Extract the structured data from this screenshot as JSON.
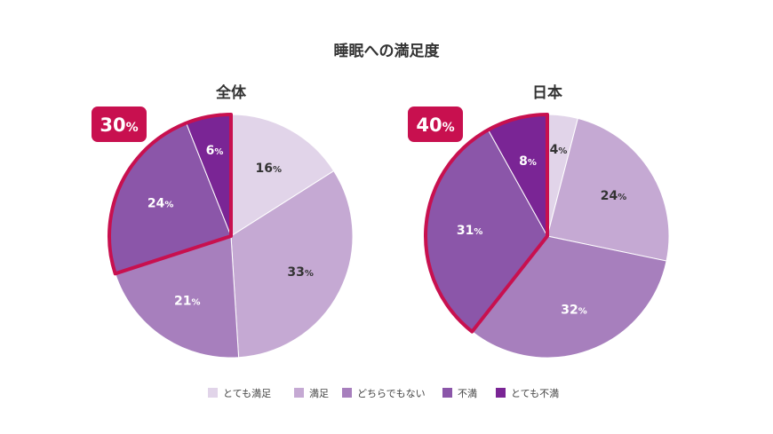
{
  "chart_data": {
    "type": "pie",
    "title": "睡眠への満足度",
    "legend": [
      "とても満足",
      "満足",
      "どちらでもない",
      "不満",
      "とても不満"
    ],
    "legend_position": "bottom",
    "colors": [
      "#e1d4e9",
      "#c5a9d3",
      "#a77fbd",
      "#8b56a9",
      "#7a2595"
    ],
    "highlight_color": "#c8104f",
    "charts": [
      {
        "title": "全体",
        "values": [
          16,
          33,
          21,
          24,
          6
        ],
        "labels": [
          "16",
          "33",
          "21",
          "24",
          "6"
        ],
        "highlight": "30",
        "highlight_slices": [
          3,
          4
        ]
      },
      {
        "title": "日本",
        "values": [
          4,
          24,
          32,
          31,
          8
        ],
        "labels": [
          "4",
          "24",
          "32",
          "31",
          "8"
        ],
        "highlight": "40",
        "highlight_slices": [
          3,
          4
        ]
      }
    ],
    "unit": "%"
  }
}
